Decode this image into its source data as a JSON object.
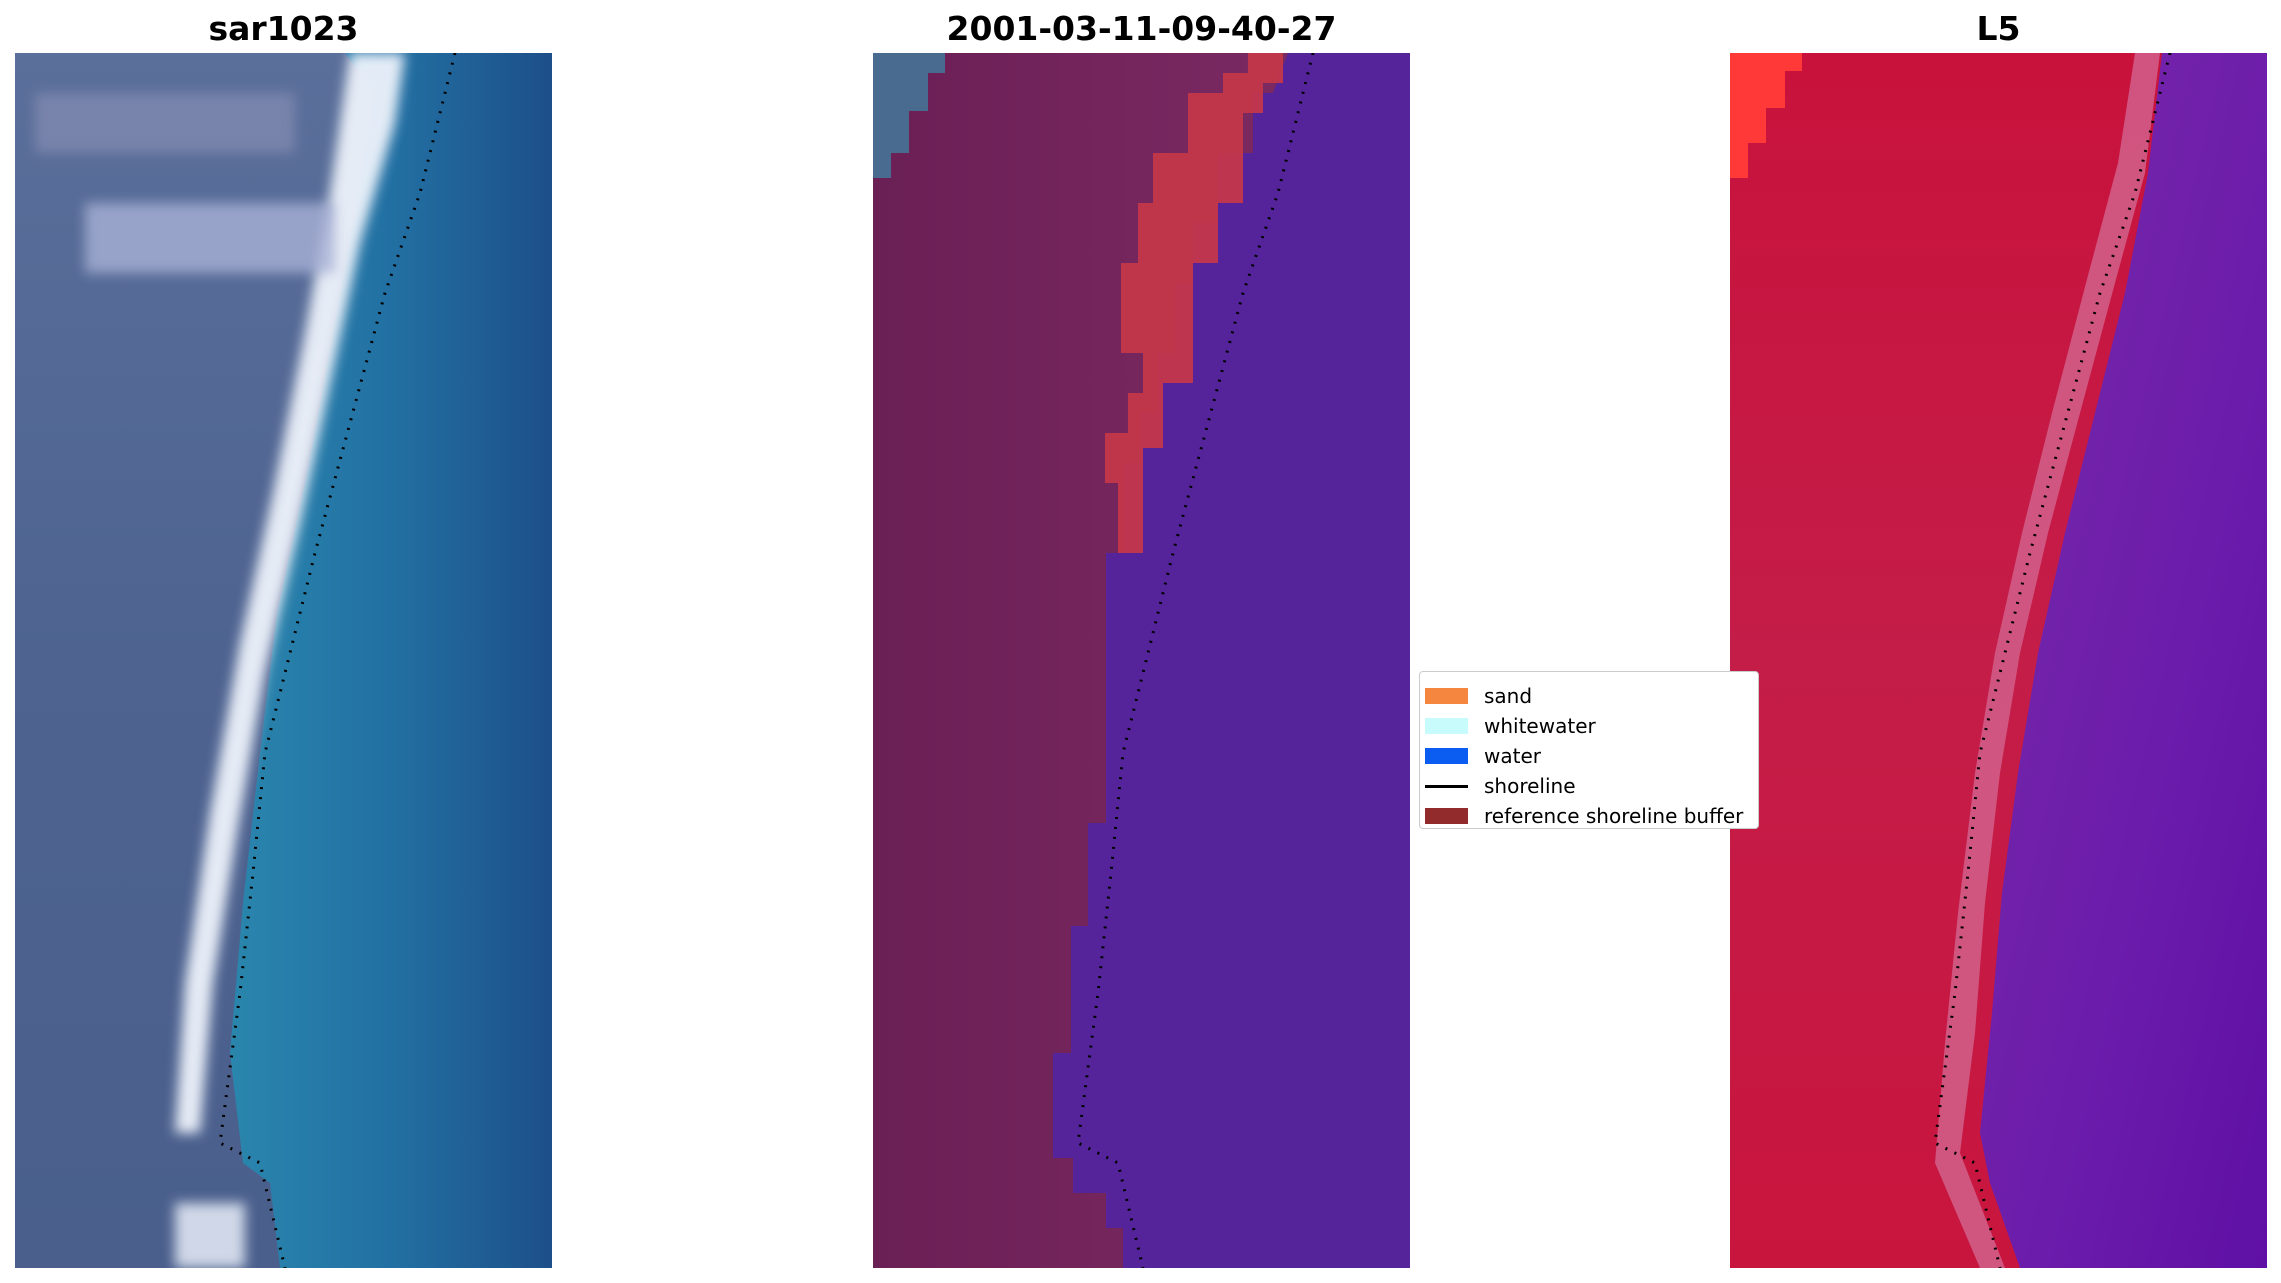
{
  "panels": {
    "left_title": "sar1023",
    "middle_title": "2001-03-11-09-40-27",
    "right_title": "L5"
  },
  "legend": {
    "items": [
      {
        "label": "sand",
        "color": "#f4863f",
        "kind": "patch"
      },
      {
        "label": "whitewater",
        "color": "#c8fbfb",
        "kind": "patch"
      },
      {
        "label": "water",
        "color": "#0b5cf0",
        "kind": "patch"
      },
      {
        "label": "shoreline",
        "color": "#000000",
        "kind": "line"
      },
      {
        "label": "reference shoreline buffer",
        "color": "#922b2b",
        "kind": "patch"
      }
    ]
  },
  "colors": {
    "rgb_land": "#4f6590",
    "rgb_water": "#226aa0",
    "rgb_surf": "#e8f0fa",
    "class_land": "#6f2158",
    "class_water": "#54239a",
    "class_sand": "#c33a48",
    "mndwi_land": "#c8163f",
    "mndwi_water": "#6a1aa6",
    "mndwi_edge": "#ff3030"
  }
}
